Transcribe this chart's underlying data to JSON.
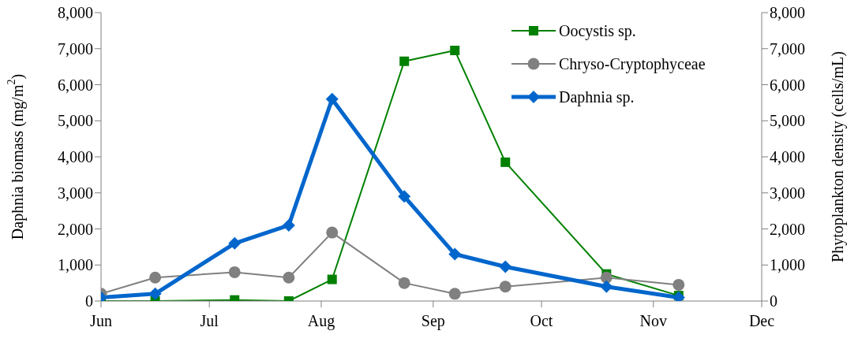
{
  "chart_data": {
    "type": "line",
    "ylabel": "Daphnia biomass (mg/m$^{2}$)",
    "y2label": "Phytoplankton density (cells/mL)",
    "x": [
      "--06-01",
      "--06-16",
      "--07-08",
      "--07-23",
      "--08-04",
      "--08-24",
      "--09-07",
      "--09-21",
      "--10-19",
      "--11-08"
    ],
    "series": [
      {
        "name": "Oocystis sp.",
        "color": "#008000",
        "axis": "y2",
        "marker": "square",
        "values": [
          0,
          0,
          30,
          0,
          600,
          6650,
          6950,
          3850,
          750,
          150
        ]
      },
      {
        "name": "Chryso-Cryptophyceae",
        "color": "#808080",
        "axis": "y2",
        "marker": "circle",
        "values": [
          200,
          650,
          800,
          650,
          1900,
          500,
          200,
          400,
          650,
          450
        ]
      },
      {
        "name": "Daphnia sp.",
        "color": "#0066cc",
        "axis": "y",
        "marker": "diamond",
        "values": [
          100,
          200,
          1600,
          2100,
          5600,
          2900,
          1300,
          950,
          400,
          100
        ]
      }
    ],
    "xlim": [
      "--06-01",
      "--12-01"
    ],
    "xticks": [
      {
        "value": "--06-01",
        "label": "Jun"
      },
      {
        "value": "--07-01",
        "label": "Jul"
      },
      {
        "value": "--08-01",
        "label": "Aug"
      },
      {
        "value": "--09-01",
        "label": "Sep"
      },
      {
        "value": "--10-01",
        "label": "Oct"
      },
      {
        "value": "--11-01",
        "label": "Nov"
      },
      {
        "value": "--12-01",
        "label": "Dec"
      }
    ],
    "ylim": [
      0,
      8000
    ],
    "yticks": [
      0,
      {
        "value": 1000,
        "label": "1,000"
      },
      {
        "value": 2000,
        "label": "2,000"
      },
      {
        "value": 3000,
        "label": "3,000"
      },
      {
        "value": 4000,
        "label": "4,000"
      },
      {
        "value": 5000,
        "label": "5,000"
      },
      {
        "value": 6000,
        "label": "6,000"
      },
      {
        "value": 7000,
        "label": "7,000"
      },
      {
        "value": 8000,
        "label": "8,000"
      }
    ],
    "y2lim": [
      0,
      8000
    ],
    "y2ticks": [
      0,
      {
        "value": 1000,
        "label": "1,000"
      },
      {
        "value": 2000,
        "label": "2,000"
      },
      {
        "value": 3000,
        "label": "3,000"
      },
      {
        "value": 4000,
        "label": "4,000"
      },
      {
        "value": 5000,
        "label": "5,000"
      },
      {
        "value": 6000,
        "label": "6,000"
      },
      {
        "value": 7000,
        "label": "7,000"
      },
      {
        "value": 8000,
        "label": "8,000"
      }
    ],
    "grid": false,
    "legend": "top right",
    "line_style": "solid"
  }
}
